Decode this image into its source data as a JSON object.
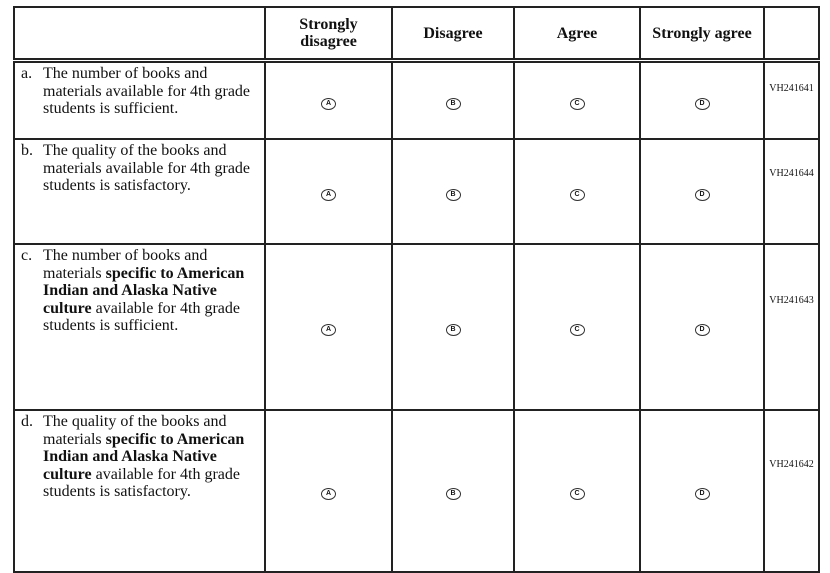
{
  "headers": [
    "",
    "Strongly disagree",
    "Disagree",
    "Agree",
    "Strongly agree",
    ""
  ],
  "options": [
    "A",
    "B",
    "C",
    "D"
  ],
  "rows": [
    {
      "label": "a.",
      "parts": [
        {
          "t": "The number of books and materials available for 4th grade students is sufficient.",
          "b": false
        }
      ],
      "id": "VH241641"
    },
    {
      "label": "b.",
      "parts": [
        {
          "t": "The quality of the books and materials available for 4th grade students is satisfactory.",
          "b": false
        }
      ],
      "id": "VH241644"
    },
    {
      "label": "c.",
      "parts": [
        {
          "t": "The number of books and materials ",
          "b": false
        },
        {
          "t": "specific to American Indian and Alaska Native culture",
          "b": true
        },
        {
          "t": " available for 4th grade students is sufficient.",
          "b": false
        }
      ],
      "id": "VH241643"
    },
    {
      "label": "d.",
      "parts": [
        {
          "t": "The quality of the books and materials ",
          "b": false
        },
        {
          "t": "specific to American Indian and Alaska Native culture",
          "b": true
        },
        {
          "t": " available for 4th grade students is satisfactory.",
          "b": false
        }
      ],
      "id": "VH241642"
    }
  ]
}
